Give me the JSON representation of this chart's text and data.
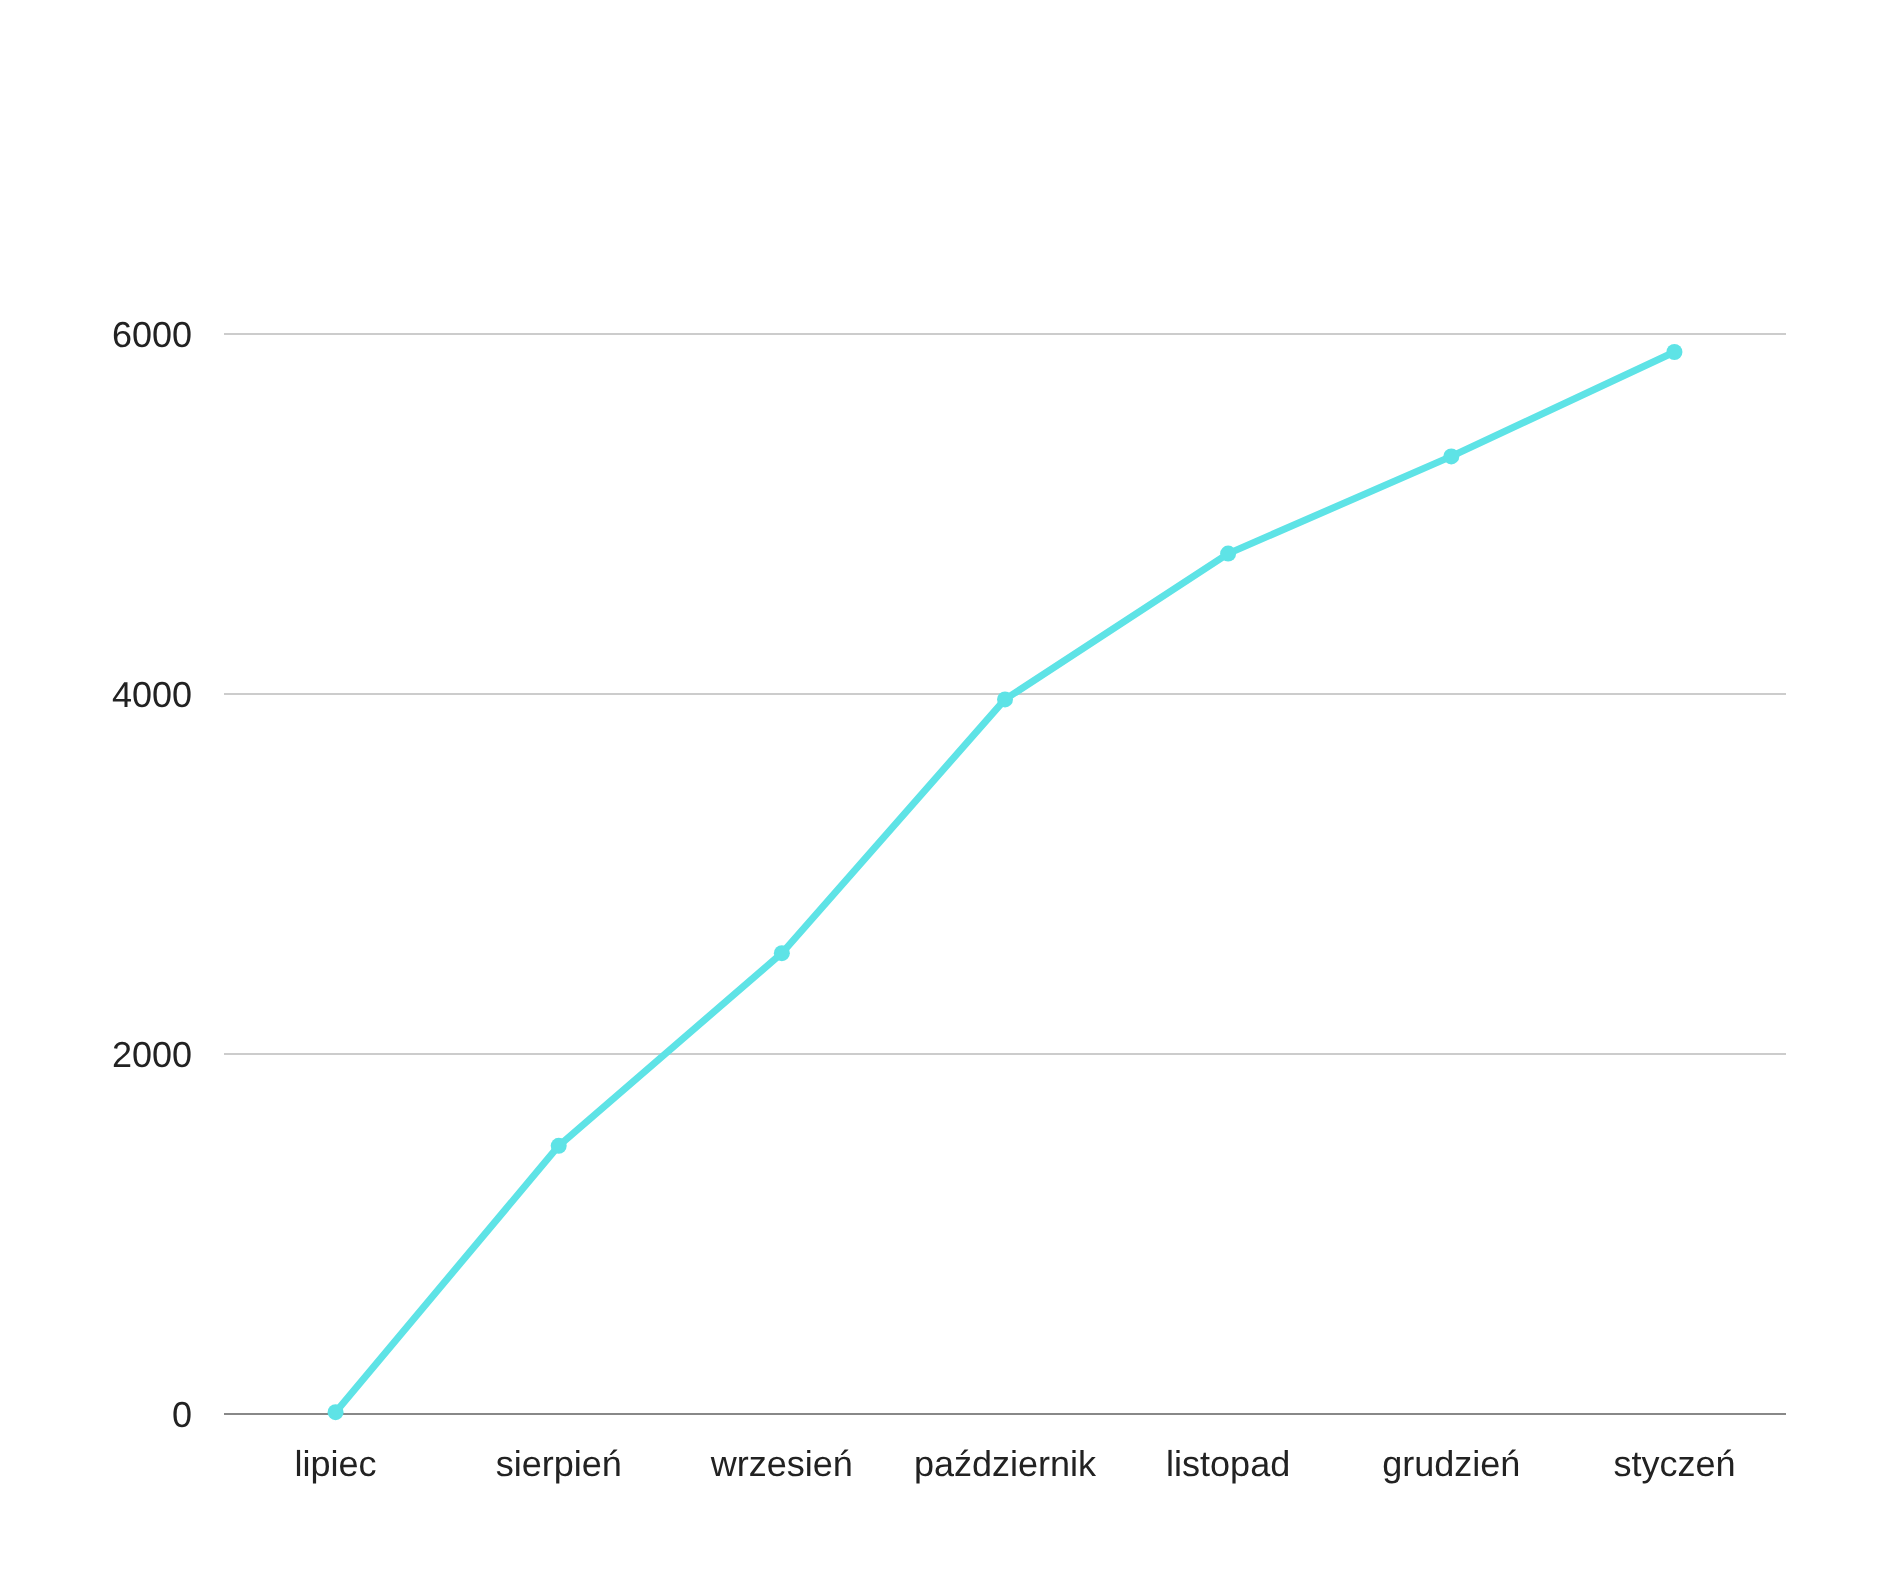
{
  "chart_data": {
    "type": "line",
    "categories": [
      "lipiec",
      "sierpień",
      "wrzesień",
      "październik",
      "listopad",
      "grudzień",
      "styczeń"
    ],
    "series": [
      {
        "color": "#5ee3e6",
        "values": [
          10,
          1490,
          2560,
          3970,
          4780,
          5320,
          5900
        ]
      }
    ],
    "ylim": [
      0,
      6000
    ],
    "yticks": [
      0,
      2000,
      4000,
      6000
    ],
    "grid": "y",
    "marker": "circle",
    "line_style": "solid"
  }
}
